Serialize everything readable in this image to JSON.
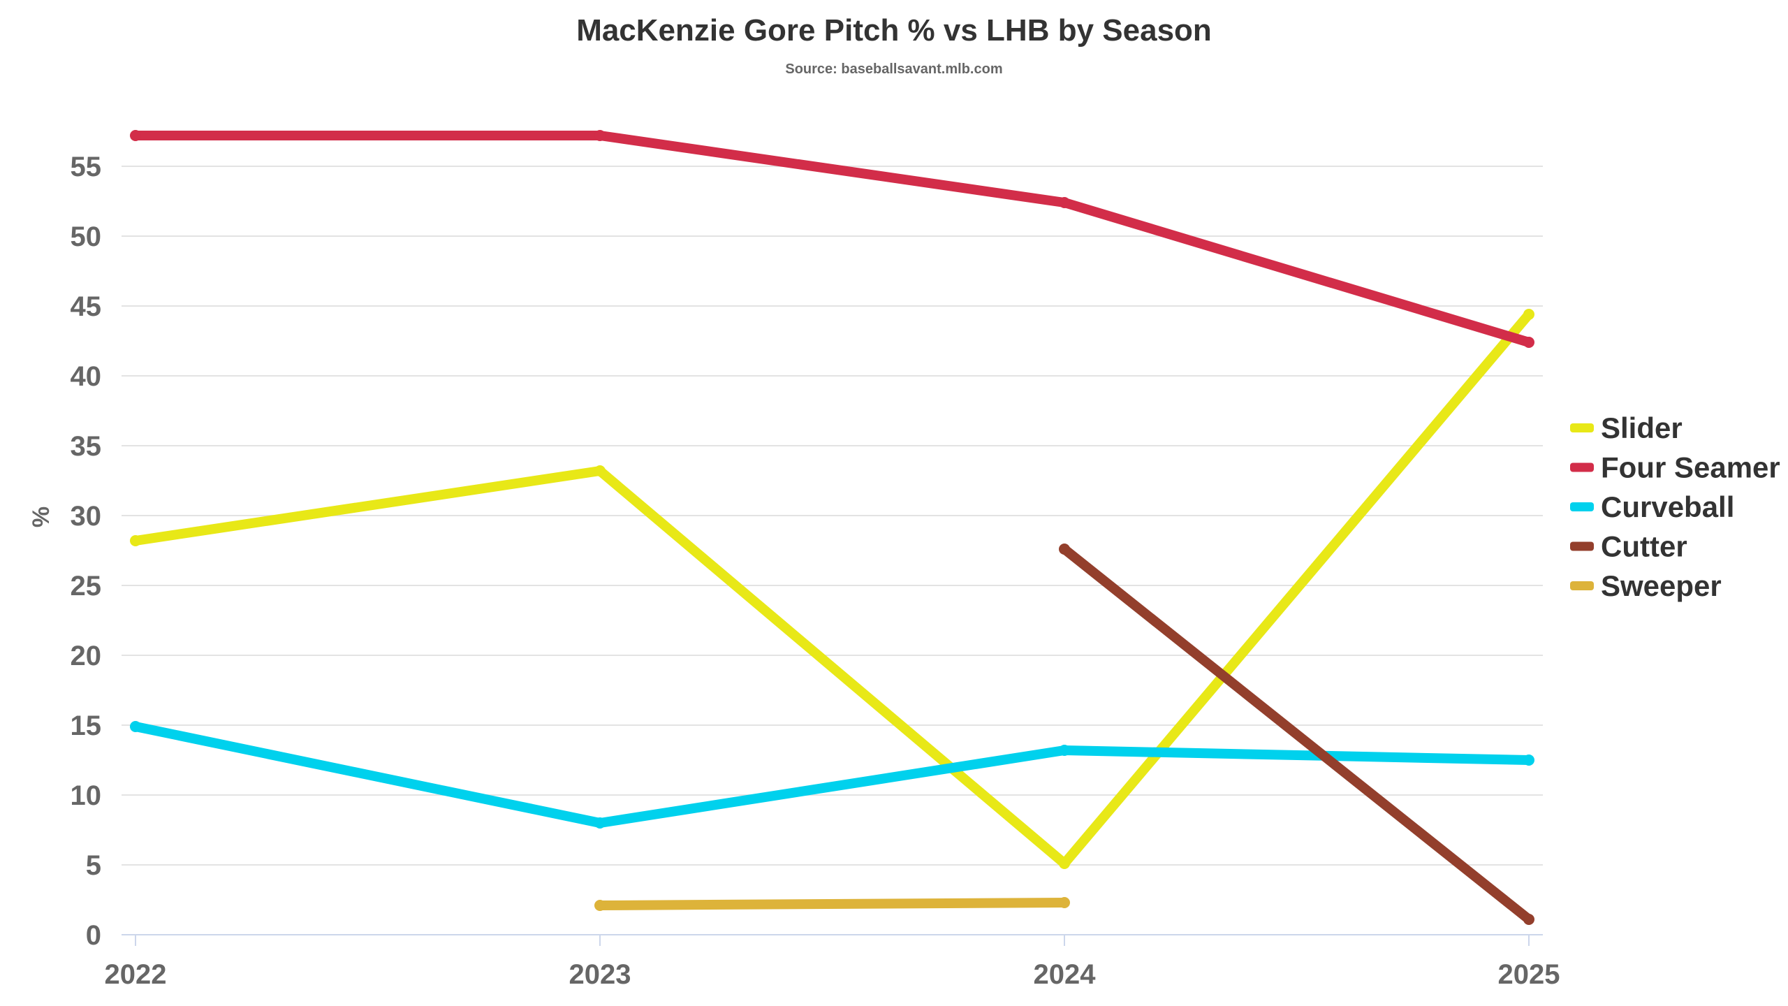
{
  "chart_data": {
    "type": "line",
    "title": "MacKenzie Gore Pitch % vs LHB by Season",
    "subtitle": "Source: baseballsavant.mlb.com",
    "xlabel": "",
    "ylabel": "%",
    "categories": [
      "2022",
      "2023",
      "2024",
      "2025"
    ],
    "ylim": [
      0,
      57.5
    ],
    "yticks": [
      "0",
      "5",
      "10",
      "15",
      "20",
      "25",
      "30",
      "35",
      "40",
      "45",
      "50",
      "55"
    ],
    "grid": true,
    "legend_position": "right",
    "series": [
      {
        "name": "Slider",
        "color": "#e8e817",
        "values": [
          28.2,
          33.2,
          5.1,
          44.4
        ]
      },
      {
        "name": "Four Seamer",
        "color": "#d22d49",
        "values": [
          57.2,
          57.2,
          52.4,
          42.4
        ]
      },
      {
        "name": "Curveball",
        "color": "#00d1ed",
        "values": [
          14.9,
          8.0,
          13.2,
          12.5
        ]
      },
      {
        "name": "Cutter",
        "color": "#933f2c",
        "values": [
          null,
          null,
          27.6,
          1.1
        ]
      },
      {
        "name": "Sweeper",
        "color": "#ddb33a",
        "values": [
          null,
          2.1,
          2.3,
          null
        ]
      }
    ]
  }
}
